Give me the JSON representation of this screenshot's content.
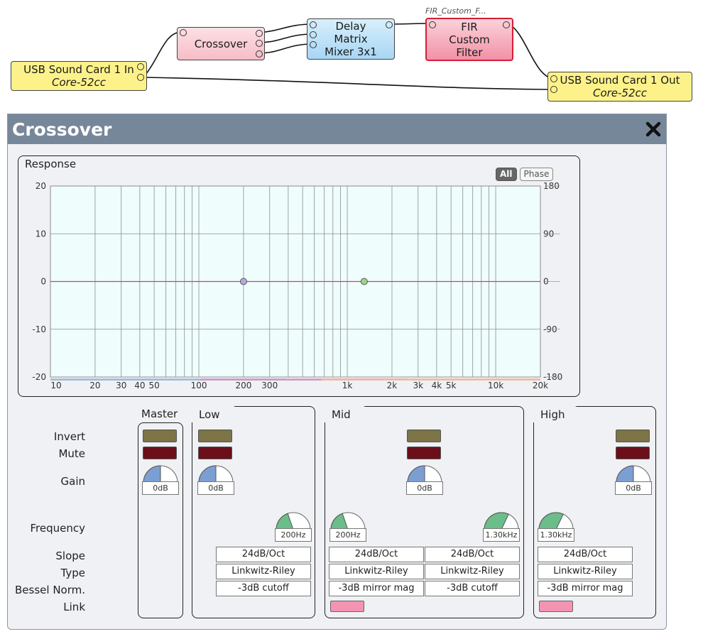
{
  "nodes": {
    "usb_in": {
      "name": "USB Sound Card 1 In",
      "sub": "Core-52cc"
    },
    "crossover": {
      "name": "Crossover"
    },
    "delay": {
      "line1": "Delay",
      "line2": "Matrix",
      "line3": "Mixer 3x1"
    },
    "fir": {
      "tag": "FIR_Custom_F...",
      "line1": "FIR",
      "line2": "Custom",
      "line3": "Filter"
    },
    "usb_out": {
      "name": "USB Sound Card 1 Out",
      "sub": "Core-52cc"
    }
  },
  "panel": {
    "title": "Crossover",
    "close_icon": "close-x-icon"
  },
  "response": {
    "label": "Response",
    "tabs": {
      "all": "All",
      "phase": "Phase"
    },
    "left_ticks": [
      "20",
      "10",
      "0",
      "-10",
      "-20"
    ],
    "right_ticks": [
      "180",
      "90",
      "0",
      "-90",
      "-180"
    ],
    "x_ticks": [
      "10",
      "20",
      "30",
      "40",
      "50",
      "100",
      "200",
      "300",
      "1k",
      "2k",
      "3k",
      "4k",
      "5k",
      "10k",
      "20k"
    ]
  },
  "chart_data": {
    "type": "line",
    "x_scale": "log",
    "xlim": [
      10,
      20000
    ],
    "ylim": [
      -20,
      20
    ],
    "y2lim": [
      -180,
      180
    ],
    "crossover_points_hz": [
      200,
      1300
    ],
    "series": [
      {
        "color": "#5a86b8",
        "fill": "#c9d2e4",
        "band_low_hz": null,
        "band_high_hz": 200,
        "slope_db_oct": 24
      },
      {
        "color": "#b04a9a",
        "fill": "#e3c4e0",
        "band_low_hz": 200,
        "band_high_hz": 1300,
        "slope_db_oct": 24
      },
      {
        "color": "#e8915a",
        "fill": "#f2ccc8",
        "band_low_hz": 1300,
        "band_high_hz": null,
        "slope_db_oct": 24
      }
    ],
    "sum_color": "#c2437d",
    "grid": true
  },
  "rows": {
    "invert": "Invert",
    "mute": "Mute",
    "gain": "Gain",
    "frequency": "Frequency",
    "slope": "Slope",
    "type": "Type",
    "bessel": "Bessel Norm.",
    "link": "Link"
  },
  "groups": {
    "master": {
      "label": "Master",
      "gain": "0dB"
    },
    "low": {
      "label": "Low",
      "gain": "0dB",
      "freq": "200Hz",
      "slope": "24dB/Oct",
      "type": "Linkwitz-Riley",
      "bessel": "-3dB cutoff"
    },
    "mid": {
      "label": "Mid",
      "gain": "0dB",
      "freq_low": "200Hz",
      "freq_high": "1.30kHz",
      "slope_low": "24dB/Oct",
      "type_low": "Linkwitz-Riley",
      "bessel_low": "-3dB mirror mag",
      "slope_high": "24dB/Oct",
      "type_high": "Linkwitz-Riley",
      "bessel_high": "-3dB cutoff"
    },
    "high": {
      "label": "High",
      "gain": "0dB",
      "freq": "1.30kHz",
      "slope": "24dB/Oct",
      "type": "Linkwitz-Riley",
      "bessel": "-3dB mirror mag"
    }
  },
  "colors": {
    "invert": "#7d7447",
    "mute": "#6b0f1a",
    "link": "#f493b2",
    "gain_knob": "#7b9fd2",
    "freq_knob": "#6bbd8a",
    "header": "#77879a"
  }
}
